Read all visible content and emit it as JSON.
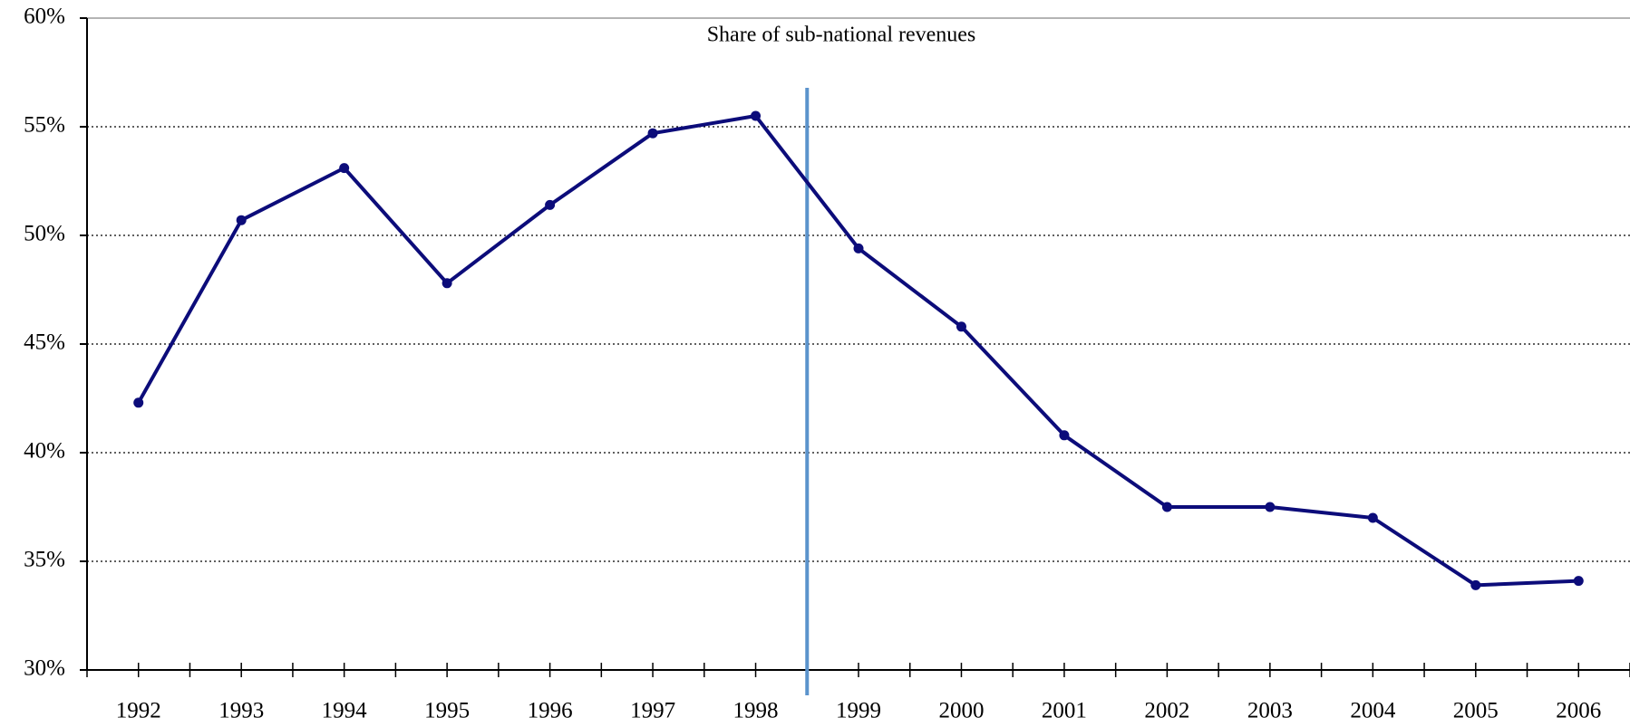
{
  "chart_data": {
    "type": "line",
    "title": "Share of sub-national revenues",
    "categories": [
      "1992",
      "1993",
      "1994",
      "1995",
      "1996",
      "1997",
      "1998",
      "1999",
      "2000",
      "2001",
      "2002",
      "2003",
      "2004",
      "2005",
      "2006"
    ],
    "series": [
      {
        "color": "#0c0c7a",
        "values": [
          42.3,
          50.7,
          53.1,
          47.8,
          51.4,
          54.7,
          55.5,
          49.4,
          45.8,
          40.8,
          37.5,
          37.5,
          37.0,
          33.9,
          34.1
        ]
      }
    ],
    "ylim": [
      30,
      60
    ],
    "yticks": [
      {
        "value": 30,
        "label": "30%"
      },
      {
        "value": 35,
        "label": "35%"
      },
      {
        "value": 40,
        "label": "40%"
      },
      {
        "value": 45,
        "label": "45%"
      },
      {
        "value": 50,
        "label": "50%"
      },
      {
        "value": 55,
        "label": "55%"
      },
      {
        "value": 60,
        "label": "60%"
      }
    ],
    "grid": true
  }
}
